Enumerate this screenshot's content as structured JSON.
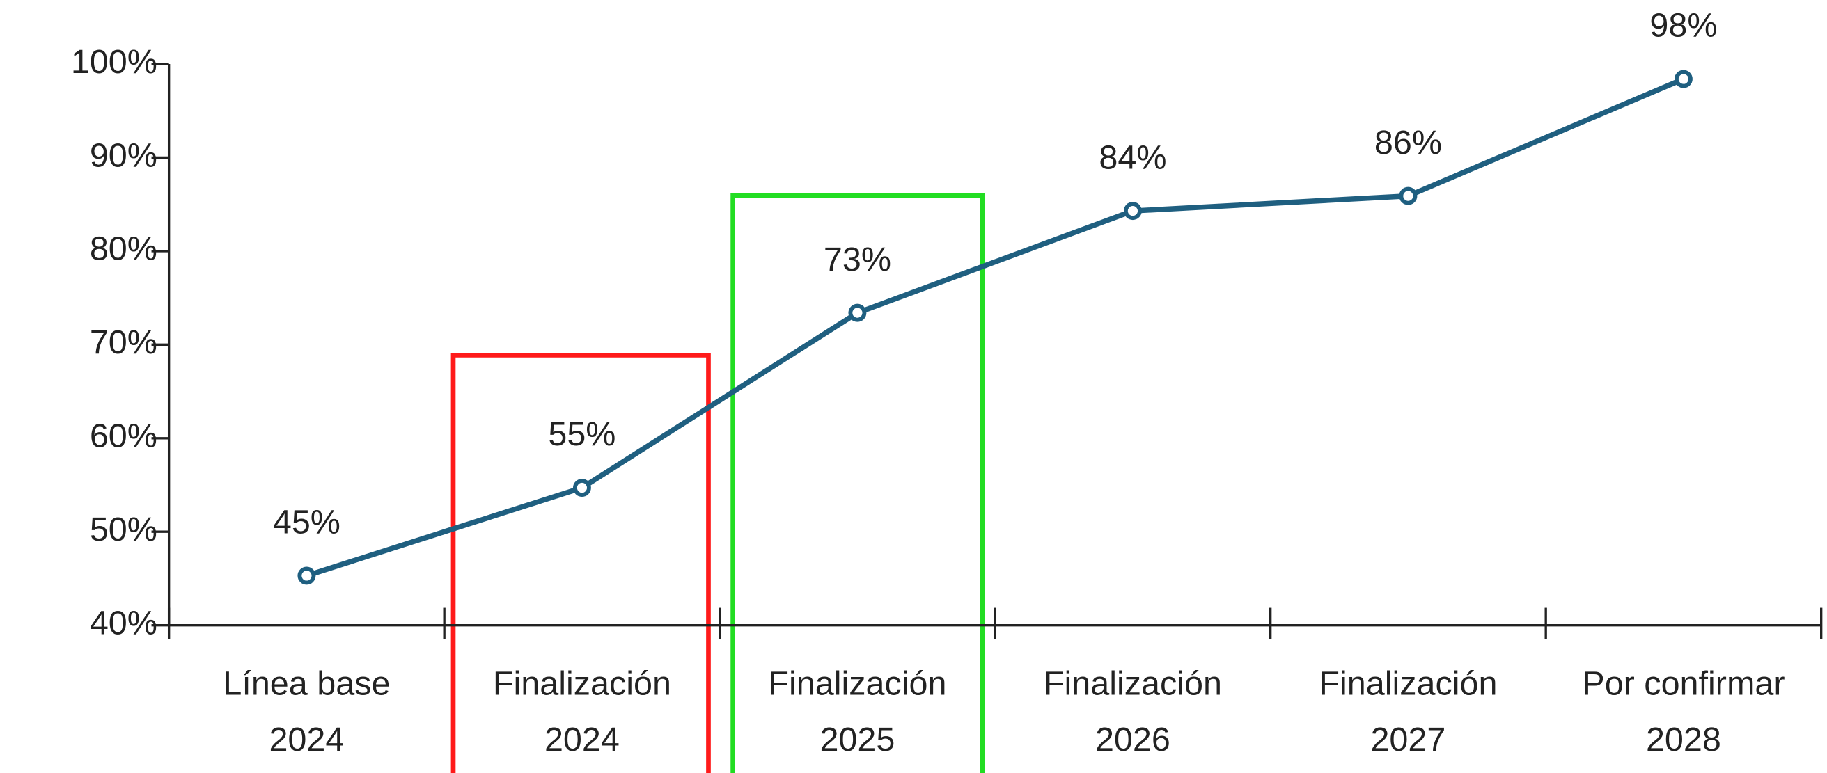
{
  "chart_data": {
    "type": "line",
    "categories": [
      [
        "Línea base",
        "2024"
      ],
      [
        "Finalización",
        "2024"
      ],
      [
        "Finalización",
        "2025"
      ],
      [
        "Finalización",
        "2026"
      ],
      [
        "Finalización",
        "2027"
      ],
      [
        "Por confirmar",
        "2028"
      ]
    ],
    "series": [
      {
        "color": "#1f5f80",
        "values": [
          45.3,
          54.7,
          73.4,
          84.3,
          85.9,
          98.4
        ],
        "value_labels": [
          "45%",
          "55%",
          "73%",
          "84%",
          "86%",
          "98%"
        ]
      }
    ],
    "ylim": [
      40,
      100
    ],
    "yticks": [
      {
        "value": 40,
        "label": "40%"
      },
      {
        "value": 50,
        "label": "50%"
      },
      {
        "value": 60,
        "label": "60%"
      },
      {
        "value": 70,
        "label": "70%"
      },
      {
        "value": 80,
        "label": "80%"
      },
      {
        "value": 90,
        "label": "90%"
      },
      {
        "value": 100,
        "label": "100%"
      }
    ]
  }
}
